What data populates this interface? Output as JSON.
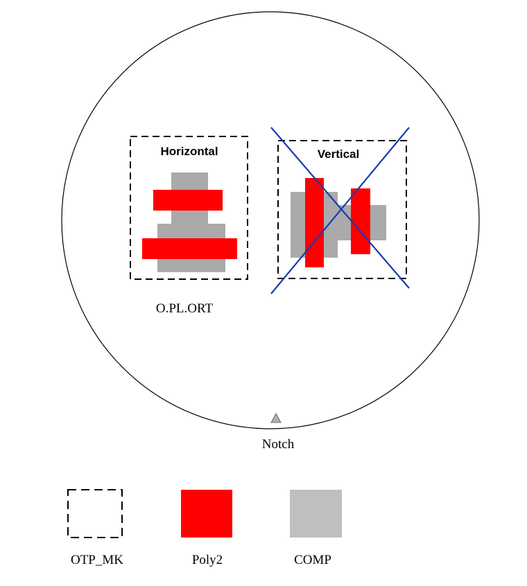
{
  "wafer": {
    "horizontal_box_title": "Horizontal",
    "vertical_box_title": "Vertical",
    "rule_label": "O.PL.ORT",
    "notch_label": "Notch"
  },
  "legend": {
    "items": [
      {
        "label": "OTP_MK",
        "style": "dashed-box"
      },
      {
        "label": "Poly2",
        "color": "#ff0000"
      },
      {
        "label": "COMP",
        "color": "#bfbfbf"
      }
    ]
  },
  "colors": {
    "poly2": "#ff0000",
    "comp": "#aaaaaa",
    "comp_legend": "#bfbfbf",
    "cross": "#1a3aad",
    "notch": "#b0b0b0"
  }
}
